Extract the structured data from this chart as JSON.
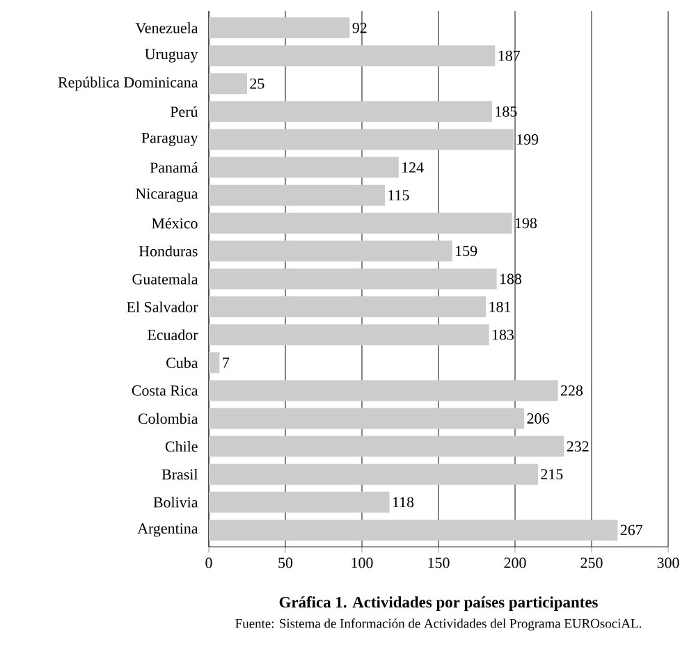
{
  "chart_data": {
    "type": "bar",
    "orientation": "horizontal",
    "title": "Gráfica 1. Actividades por países participantes",
    "annotations": [
      "Fuente: Sistema de Información de Actividades del Programa EUROsociAL."
    ],
    "categories": [
      "Venezuela",
      "Uruguay",
      "República Dominicana",
      "Perú",
      "Paraguay",
      "Panamá",
      "Nicaragua",
      "México",
      "Honduras",
      "Guatemala",
      "El Salvador",
      "Ecuador",
      "Cuba",
      "Costa Rica",
      "Colombia",
      "Chile",
      "Brasil",
      "Bolivia",
      "Argentina"
    ],
    "values": [
      92,
      187,
      25,
      185,
      199,
      124,
      115,
      198,
      159,
      188,
      181,
      183,
      7,
      228,
      206,
      232,
      215,
      118,
      267
    ],
    "color": "#cccccc",
    "xlim": [
      0,
      300
    ],
    "xticks": [
      0,
      50,
      100,
      150,
      200,
      250,
      300
    ],
    "grid": "x",
    "data_labels": true
  }
}
